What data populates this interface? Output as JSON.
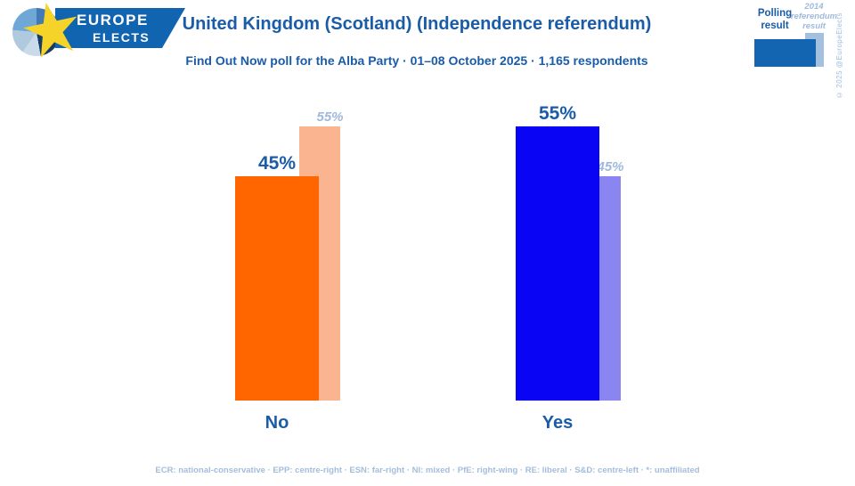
{
  "logo": {
    "line1": "EUROPE",
    "line2": "ELECTS"
  },
  "header": {
    "title": "United Kingdom (Scotland) (Independence referendum)",
    "subtitle": "Find Out Now poll for the Alba Party · 01–08 October 2025 · 1,165 respondents"
  },
  "legend": {
    "polling_label": "Polling result",
    "referendum_label": "2014 referendum result",
    "swatch_primary": "#1365B2",
    "swatch_secondary": "#A3C0DE"
  },
  "copyright": "© 2025 @EuropeElects",
  "chart_data": {
    "type": "bar",
    "categories": [
      "No",
      "Yes"
    ],
    "series": [
      {
        "name": "Polling result",
        "values": [
          45,
          55
        ],
        "labels": [
          "45%",
          "55%"
        ],
        "colors": [
          "#FF6600",
          "#0A04F5"
        ]
      },
      {
        "name": "2014 referendum result",
        "values": [
          55,
          45
        ],
        "labels": [
          "55%",
          "45%"
        ],
        "colors": [
          "#FAB590",
          "#8B85F2"
        ]
      }
    ],
    "ylim": [
      0,
      60
    ],
    "grid": false,
    "legend_position": "top-right",
    "value_label_colors": {
      "primary": "#1A5CA8",
      "secondary": "#9FB9DC"
    }
  },
  "footer": {
    "text": "ECR: national-conservative · EPP: centre-right · ESN: far-right · NI: mixed · PfE: right-wing · RE: liberal · S&D: centre-left · *: unaffiliated"
  }
}
